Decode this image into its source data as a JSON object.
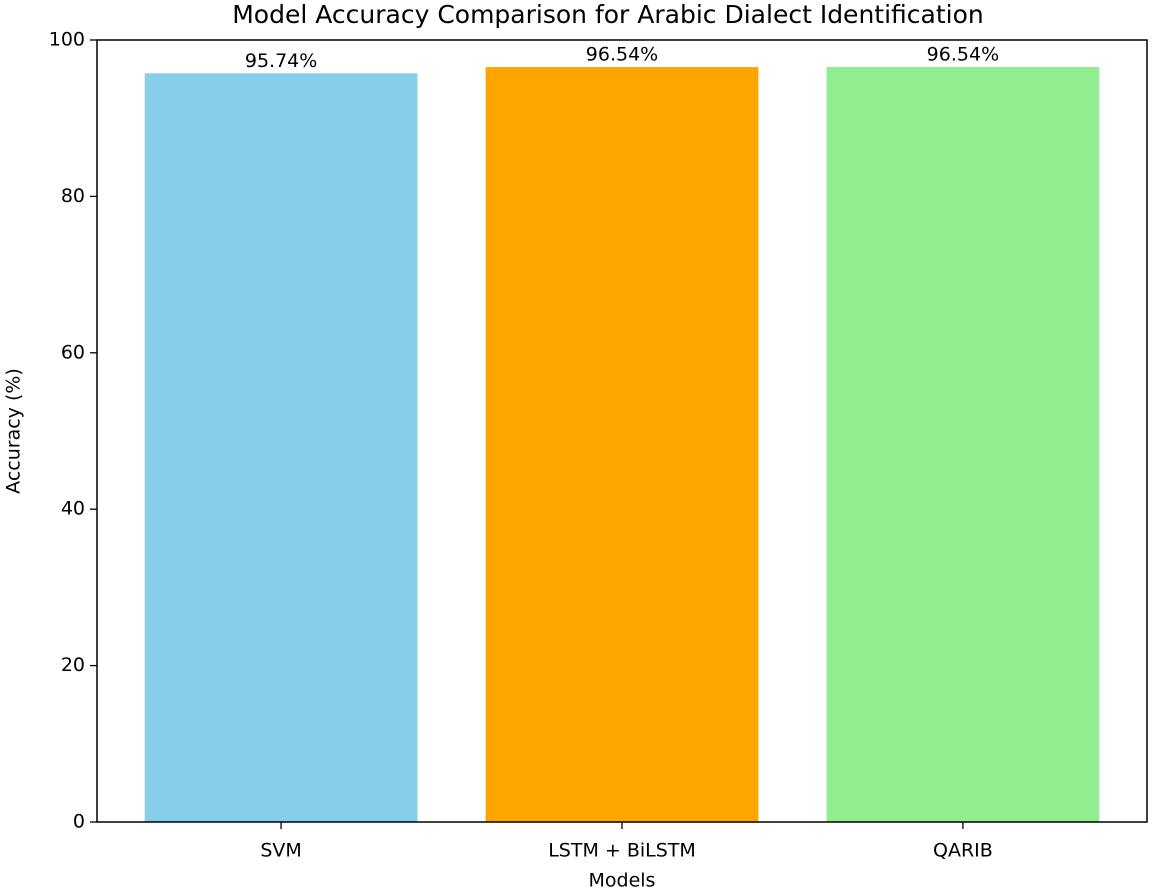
{
  "chart_data": {
    "type": "bar",
    "title": "Model Accuracy Comparison for Arabic Dialect Identification",
    "x_label": "Models",
    "y_label": "Accuracy (%)",
    "categories": [
      "SVM",
      "LSTM + BiLSTM",
      "QARIB"
    ],
    "values": [
      95.74,
      96.54,
      96.54
    ],
    "value_labels": [
      "95.74%",
      "96.54%",
      "96.54%"
    ],
    "colors": [
      "#87ceeb",
      "#ffa500",
      "#90ee90"
    ],
    "ylim": [
      0,
      100
    ],
    "yticks": [
      0,
      20,
      40,
      60,
      80,
      100
    ],
    "grid": false
  }
}
